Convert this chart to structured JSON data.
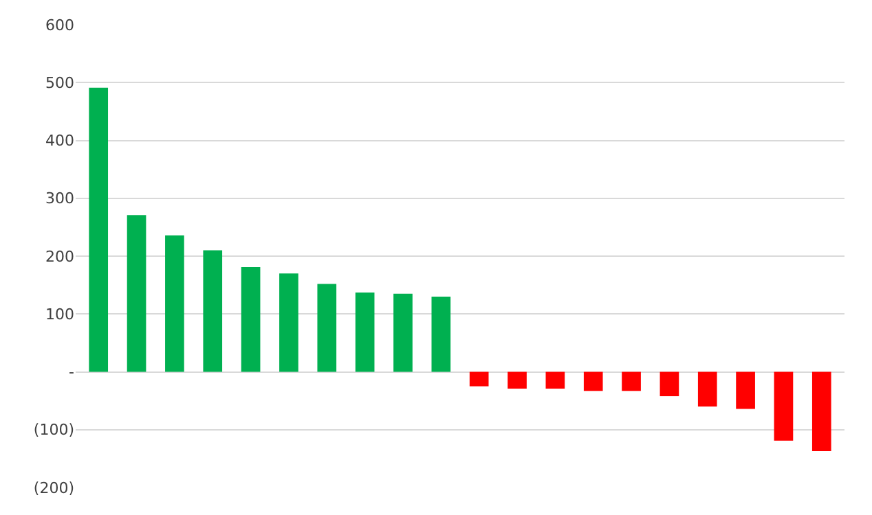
{
  "chart_data": {
    "type": "bar",
    "categories": [
      null,
      null,
      null,
      null,
      null,
      null,
      null,
      null,
      null,
      null,
      null,
      null,
      null,
      null,
      null,
      null,
      null,
      null,
      null,
      null
    ],
    "values": [
      491,
      271,
      236,
      210,
      181,
      170,
      152,
      137,
      135,
      130,
      -25,
      -29,
      -29,
      -33,
      -33,
      -42,
      -60,
      -64,
      -119,
      -137
    ],
    "colors": [
      "#00b050",
      "#00b050",
      "#00b050",
      "#00b050",
      "#00b050",
      "#00b050",
      "#00b050",
      "#00b050",
      "#00b050",
      "#00b050",
      "#ff0000",
      "#ff0000",
      "#ff0000",
      "#ff0000",
      "#ff0000",
      "#ff0000",
      "#ff0000",
      "#ff0000",
      "#ff0000",
      "#ff0000"
    ],
    "ylim": [
      -200,
      600
    ],
    "yticks": [
      {
        "value": -200,
        "label": "(200)"
      },
      {
        "value": -100,
        "label": "(100)"
      },
      {
        "value": 0,
        "label": "-"
      },
      100,
      200,
      300,
      400,
      500,
      600
    ],
    "grid": "y"
  }
}
